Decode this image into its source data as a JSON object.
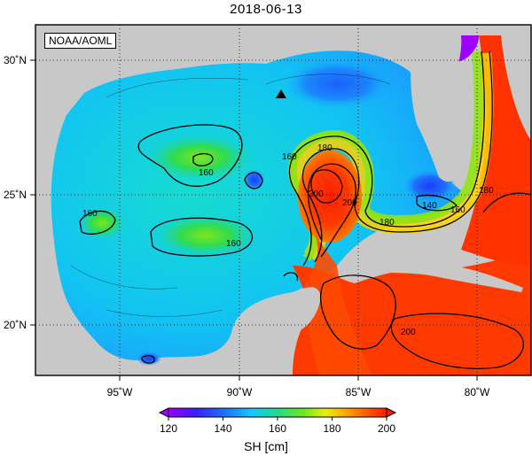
{
  "title": "2018-06-13",
  "credit": "NOAA/AOML",
  "lon_labels": [
    "95˚W",
    "90˚W",
    "85˚W",
    "80˚W"
  ],
  "lat_labels": [
    "30˚N",
    "25˚N",
    "20˚N"
  ],
  "contour_labels": [
    "160",
    "160",
    "160",
    "160",
    "180",
    "200",
    "200",
    "180",
    "160",
    "140",
    "180",
    "200"
  ],
  "colorbar": {
    "label": "SH [cm]",
    "ticks": [
      "120",
      "140",
      "160",
      "180",
      "200"
    ],
    "min": 120,
    "max": 200
  },
  "colors": {
    "land": "#c8c8c8",
    "low": "#7a00ff",
    "mid": "#22dd33",
    "high": "#ff2a00"
  }
}
